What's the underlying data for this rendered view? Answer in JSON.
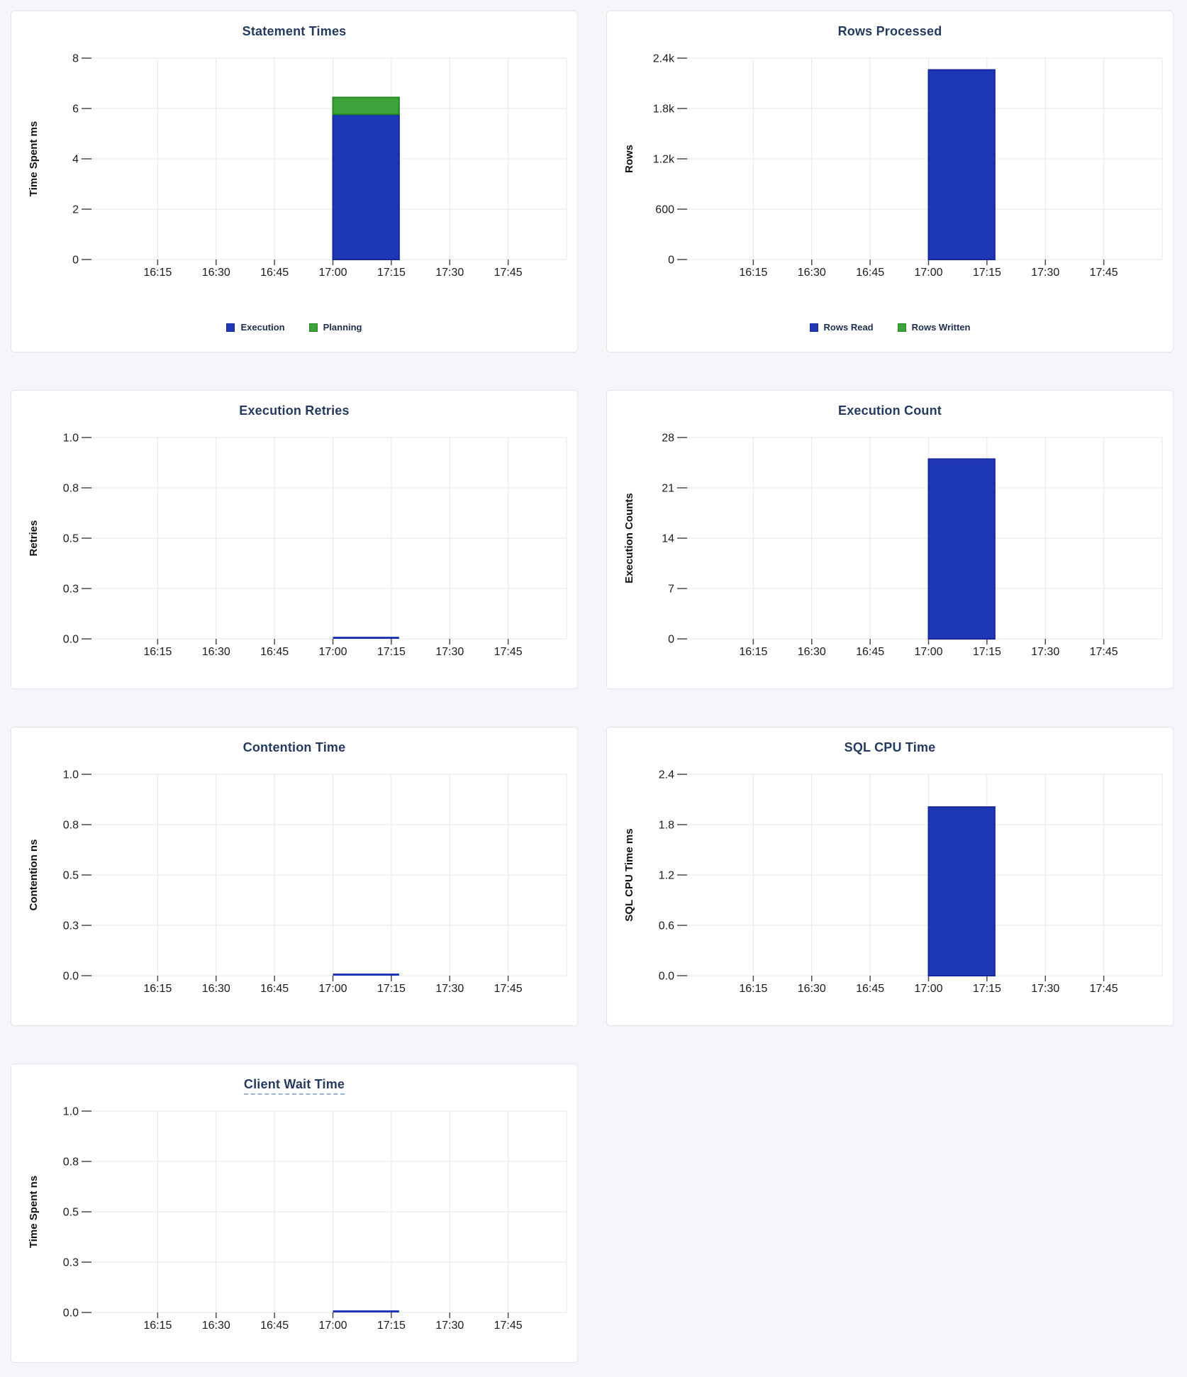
{
  "colors": {
    "page_bg": "#f4f6fa",
    "card_bg": "#ffffff",
    "card_border": "#e2e8f0",
    "title_text": "#253a60",
    "tick_text": "#1b1b1b",
    "grid_line": "#e7e7e7",
    "tick_mark": "#4b4b4b",
    "legend_text": "#1c2d50",
    "tooltip_underline": "#9db1cf",
    "blue": "#1e38b5",
    "blue_border": "#19279d",
    "green": "#3ea23b",
    "green_border": "#208a20"
  },
  "x_axis": {
    "tick_labels": [
      "16:15",
      "16:30",
      "16:45",
      "17:00",
      "17:15",
      "17:30",
      "17:45"
    ],
    "tick_minutes": [
      975,
      990,
      1005,
      1020,
      1035,
      1050,
      1065
    ],
    "domain_minutes": [
      958,
      1080
    ],
    "series_span_minutes": [
      1020,
      1037
    ],
    "series_span_labels": [
      "17:00",
      "17:17"
    ],
    "grid": "on"
  },
  "chart_data": [
    {
      "type": "bar",
      "title": "Statement Times",
      "title_tooltip_underline": false,
      "ylabel": "Time Spent ms",
      "ytick_labels": [
        "0",
        "2",
        "4",
        "6",
        "8"
      ],
      "ylim": [
        0,
        8
      ],
      "bar_x_start": "17:00",
      "bar_x_end": "17:17",
      "stacked": true,
      "legend": true,
      "legend_position": "bottom",
      "series": [
        {
          "name": "Execution",
          "color": "blue",
          "value": 5.77
        },
        {
          "name": "Planning",
          "color": "green",
          "value": 0.67
        }
      ]
    },
    {
      "type": "bar",
      "title": "Rows Processed",
      "title_tooltip_underline": false,
      "ylabel": "Rows",
      "ytick_labels": [
        "0",
        "600",
        "1.2k",
        "1.8k",
        "2.4k"
      ],
      "ylim": [
        0,
        2400
      ],
      "bar_x_start": "17:00",
      "bar_x_end": "17:17",
      "stacked": true,
      "legend": true,
      "legend_position": "bottom",
      "series": [
        {
          "name": "Rows Read",
          "color": "blue",
          "value": 2260
        },
        {
          "name": "Rows Written",
          "color": "green",
          "value": 0
        }
      ]
    },
    {
      "type": "line",
      "title": "Execution Retries",
      "title_tooltip_underline": false,
      "ylabel": "Retries",
      "ytick_labels": [
        "0.0",
        "0.3",
        "0.5",
        "0.8",
        "1.0"
      ],
      "ylim": [
        0,
        1
      ],
      "bar_x_start": "17:00",
      "bar_x_end": "17:17",
      "legend": false,
      "series": [
        {
          "color": "blue",
          "value": 0
        }
      ]
    },
    {
      "type": "bar",
      "title": "Execution Count",
      "title_tooltip_underline": false,
      "ylabel": "Execution Counts",
      "ytick_labels": [
        "0",
        "7",
        "14",
        "21",
        "28"
      ],
      "ylim": [
        0,
        28
      ],
      "bar_x_start": "17:00",
      "bar_x_end": "17:17",
      "legend": false,
      "series": [
        {
          "color": "blue",
          "value": 25
        }
      ]
    },
    {
      "type": "line",
      "title": "Contention Time",
      "title_tooltip_underline": false,
      "ylabel": "Contention ns",
      "ytick_labels": [
        "0.0",
        "0.3",
        "0.5",
        "0.8",
        "1.0"
      ],
      "ylim": [
        0,
        1
      ],
      "bar_x_start": "17:00",
      "bar_x_end": "17:17",
      "legend": false,
      "series": [
        {
          "color": "blue",
          "value": 0
        }
      ]
    },
    {
      "type": "bar",
      "title": "SQL CPU Time",
      "title_tooltip_underline": false,
      "ylabel": "SQL CPU Time ms",
      "ytick_labels": [
        "0.0",
        "0.6",
        "1.2",
        "1.8",
        "2.4"
      ],
      "ylim": [
        0,
        2.4
      ],
      "bar_x_start": "17:00",
      "bar_x_end": "17:17",
      "legend": false,
      "series": [
        {
          "color": "blue",
          "value": 2.01
        }
      ]
    },
    {
      "type": "line",
      "title": "Client Wait Time",
      "title_tooltip_underline": true,
      "ylabel": "Time Spent ns",
      "ytick_labels": [
        "0.0",
        "0.3",
        "0.5",
        "0.8",
        "1.0"
      ],
      "ylim": [
        0,
        1
      ],
      "bar_x_start": "17:00",
      "bar_x_end": "17:17",
      "legend": false,
      "series": [
        {
          "color": "blue",
          "value": 0
        }
      ]
    }
  ]
}
